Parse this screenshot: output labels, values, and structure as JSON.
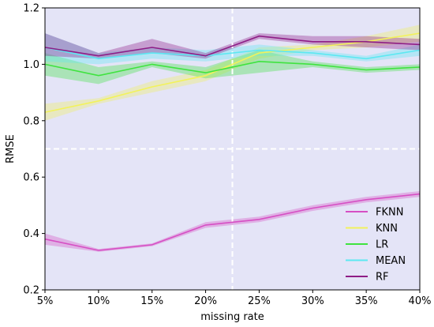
{
  "chart_data": {
    "type": "line",
    "title": "",
    "xlabel": "missing rate",
    "ylabel": "RMSE",
    "categories": [
      "5%",
      "10%",
      "15%",
      "20%",
      "25%",
      "30%",
      "35%",
      "40%"
    ],
    "ylim": [
      0.2,
      1.2
    ],
    "yticks": [
      0.2,
      0.4,
      0.6,
      0.8,
      1.0,
      1.2
    ],
    "ytick_labels": [
      "0.2",
      "0.4",
      "0.6",
      "0.8",
      "1.0",
      "1.2"
    ],
    "reference_lines": {
      "x_between": [
        "20%",
        "25%"
      ],
      "y": 0.7
    },
    "legend_position": "lower-right",
    "background_color": "#e4e4f7",
    "series": [
      {
        "name": "FKNN",
        "color": "#d64fc4",
        "values": [
          0.38,
          0.34,
          0.36,
          0.43,
          0.45,
          0.49,
          0.52,
          0.54
        ],
        "lower": [
          0.36,
          0.335,
          0.355,
          0.42,
          0.44,
          0.48,
          0.51,
          0.53
        ],
        "upper": [
          0.4,
          0.345,
          0.365,
          0.44,
          0.46,
          0.5,
          0.53,
          0.55
        ]
      },
      {
        "name": "KNN",
        "color": "#f2f25c",
        "values": [
          0.83,
          0.87,
          0.92,
          0.96,
          1.04,
          1.06,
          1.08,
          1.11
        ],
        "lower": [
          0.8,
          0.86,
          0.9,
          0.94,
          1.02,
          1.05,
          1.06,
          1.08
        ],
        "upper": [
          0.86,
          0.88,
          0.94,
          0.98,
          1.06,
          1.07,
          1.1,
          1.14
        ]
      },
      {
        "name": "LR",
        "color": "#3fe33f",
        "values": [
          1.0,
          0.96,
          1.0,
          0.97,
          1.01,
          1.0,
          0.98,
          0.99
        ],
        "lower": [
          0.96,
          0.93,
          0.99,
          0.95,
          0.97,
          0.99,
          0.97,
          0.98
        ],
        "upper": [
          1.04,
          0.99,
          1.01,
          0.99,
          1.05,
          1.01,
          0.99,
          1.0
        ]
      },
      {
        "name": "MEAN",
        "color": "#5ce8f2",
        "values": [
          1.06,
          1.02,
          1.04,
          1.03,
          1.05,
          1.04,
          1.02,
          1.05
        ],
        "lower": [
          1.01,
          1.0,
          1.02,
          1.01,
          1.03,
          1.03,
          1.01,
          1.03
        ],
        "upper": [
          1.11,
          1.04,
          1.06,
          1.05,
          1.07,
          1.05,
          1.03,
          1.07
        ]
      },
      {
        "name": "RF",
        "color": "#8e1d86",
        "values": [
          1.06,
          1.03,
          1.06,
          1.03,
          1.1,
          1.08,
          1.08,
          1.07
        ],
        "lower": [
          1.03,
          1.02,
          1.04,
          1.02,
          1.09,
          1.07,
          1.06,
          1.05
        ],
        "upper": [
          1.11,
          1.04,
          1.09,
          1.04,
          1.11,
          1.1,
          1.1,
          1.09
        ]
      }
    ]
  }
}
